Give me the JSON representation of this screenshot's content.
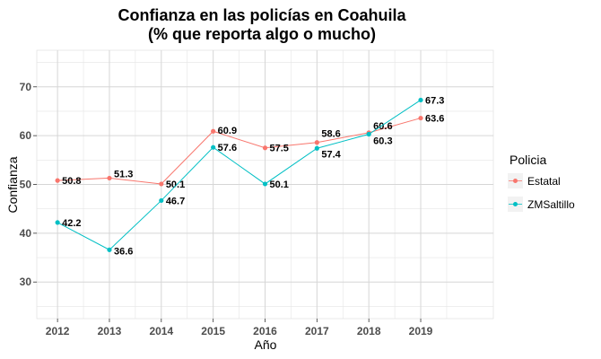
{
  "chart_data": {
    "type": "line",
    "title_line1": "Confianza en las policías en Coahuila",
    "title_line2": "(% que reporta algo o mucho)",
    "xlabel": "Año",
    "ylabel": "Confianza",
    "x": [
      2012,
      2013,
      2014,
      2015,
      2016,
      2017,
      2018,
      2019
    ],
    "y_ticks": [
      30,
      40,
      50,
      60,
      70
    ],
    "ylim": [
      22.5,
      77.5
    ],
    "xlim": [
      2011.6,
      2020.4
    ],
    "grid": true,
    "legend": {
      "title": "Policia",
      "position": "right"
    },
    "series": [
      {
        "name": "Estatal",
        "color": "#F8766D",
        "values": [
          50.8,
          51.3,
          50.1,
          60.9,
          57.5,
          58.6,
          60.6,
          63.6
        ],
        "labels": [
          "50.8",
          "51.3",
          "50.1",
          "60.9",
          "57.5",
          "58.6",
          "60.6",
          "63.6"
        ]
      },
      {
        "name": "ZMSaltillo",
        "color": "#00BFC4",
        "values": [
          42.2,
          36.6,
          46.7,
          57.6,
          50.1,
          57.4,
          60.3,
          67.3
        ],
        "labels": [
          "42.2",
          "36.6",
          "46.7",
          "57.6",
          "50.1",
          "57.4",
          "60.3",
          "67.3"
        ]
      }
    ]
  }
}
